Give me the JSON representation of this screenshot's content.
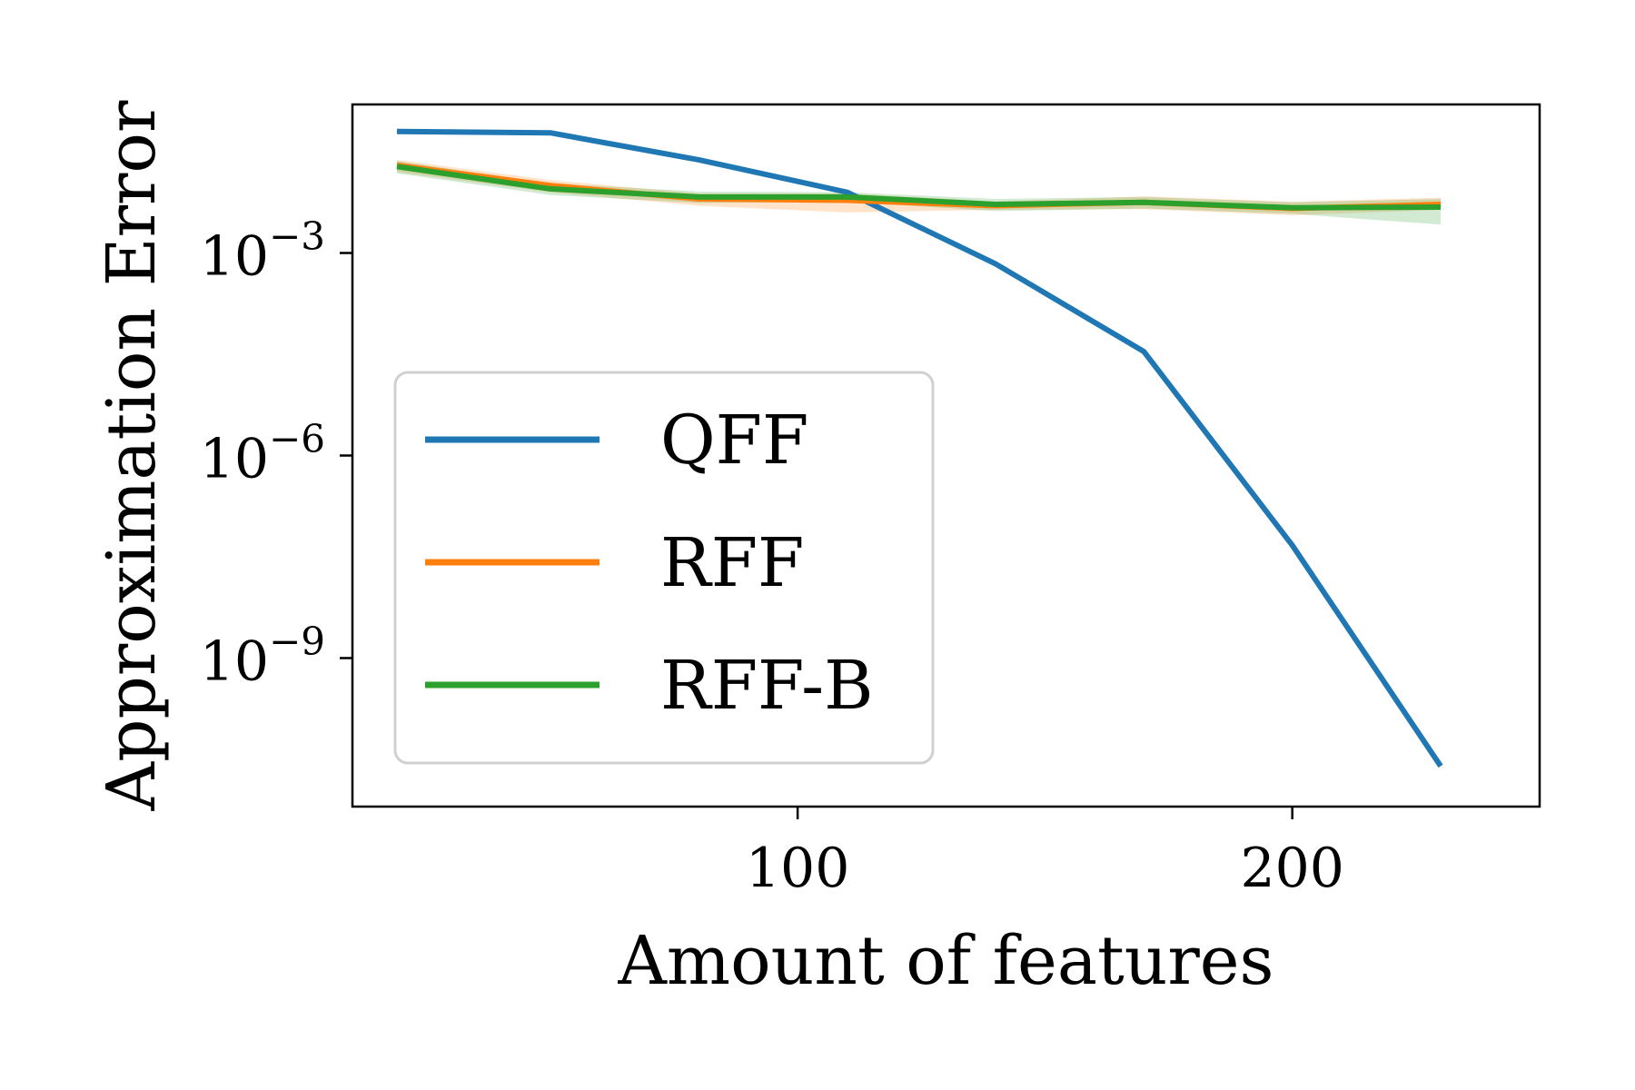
{
  "chart_data": {
    "type": "line",
    "xlabel": "Amount of features",
    "ylabel": "Approximation Error",
    "xlim": [
      10,
      250
    ],
    "ylim_log10": [
      -11.2,
      -0.8
    ],
    "yscale": "log",
    "x_ticks": [
      100,
      200
    ],
    "x_tick_labels": [
      "100",
      "200"
    ],
    "y_ticks_log10": [
      -3,
      -6,
      -9
    ],
    "y_tick_labels": [
      {
        "base": "10",
        "exp": "−3"
      },
      {
        "base": "10",
        "exp": "−6"
      },
      {
        "base": "10",
        "exp": "−9"
      }
    ],
    "grid": false,
    "legend_position": "center-left",
    "series": [
      {
        "name": "QFF",
        "color": "#1f77b4",
        "x": [
          19,
          50,
          80,
          110,
          140,
          170,
          200,
          230
        ],
        "log10_y": [
          -1.2,
          -1.22,
          -1.62,
          -2.1,
          -3.16,
          -4.46,
          -7.33,
          -10.6
        ]
      },
      {
        "name": "RFF",
        "color": "#ff7f0e",
        "x": [
          19,
          50,
          80,
          110,
          140,
          170,
          200,
          230
        ],
        "log10_y": [
          -1.7,
          -2.0,
          -2.2,
          -2.22,
          -2.3,
          -2.25,
          -2.34,
          -2.28
        ],
        "band_low": [
          -1.8,
          -2.1,
          -2.3,
          -2.4,
          -2.36,
          -2.35,
          -2.44,
          -2.36
        ],
        "band_high": [
          -1.62,
          -1.92,
          -2.12,
          -2.12,
          -2.24,
          -2.16,
          -2.24,
          -2.18
        ]
      },
      {
        "name": "RFF-B",
        "color": "#2ca02c",
        "x": [
          19,
          50,
          80,
          110,
          140,
          170,
          200,
          230
        ],
        "log10_y": [
          -1.72,
          -2.05,
          -2.17,
          -2.17,
          -2.28,
          -2.25,
          -2.33,
          -2.32
        ],
        "band_low": [
          -1.82,
          -2.14,
          -2.26,
          -2.24,
          -2.38,
          -2.34,
          -2.42,
          -2.58
        ],
        "band_high": [
          -1.64,
          -1.97,
          -2.09,
          -2.1,
          -2.2,
          -2.17,
          -2.25,
          -2.2
        ]
      }
    ]
  }
}
